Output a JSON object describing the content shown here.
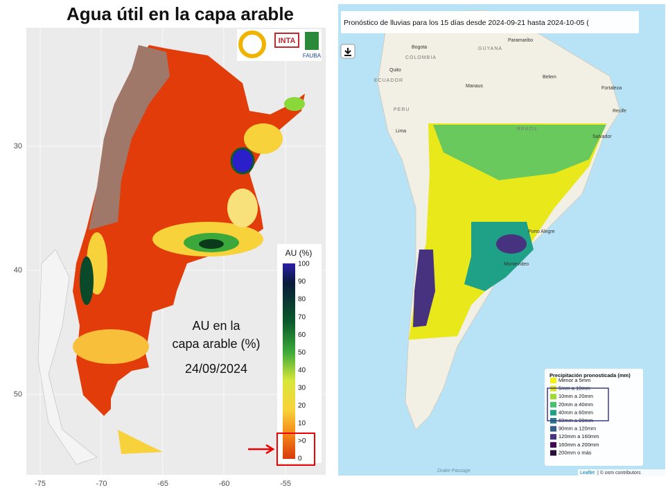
{
  "left_map": {
    "title": "Agua útil en la capa arable",
    "logos": [
      "INTA",
      "FAUBA"
    ],
    "x_ticks": [
      "-75",
      "-70",
      "-65",
      "-60",
      "-55"
    ],
    "y_ticks": [
      "30",
      "40",
      "50"
    ],
    "colorbar": {
      "title": "AU (%)",
      "labels": [
        "100",
        "90",
        "80",
        "70",
        "60",
        "50",
        "40",
        "30",
        "20",
        "10",
        ">0",
        "0"
      ]
    },
    "annotation": {
      "lines": [
        "AU en la",
        "capa arable (%)"
      ],
      "date": "24/09/2024"
    }
  },
  "right_map": {
    "title": "Pronóstico de lluvias para los 15 días desde 2024-09-21 hasta 2024-10-05 (",
    "places": [
      "Bogota",
      "Paramaribo",
      "GUYANA",
      "COLOMBIA",
      "Quito",
      "ECUADOR",
      "Manaus",
      "Belem",
      "Fortaleza",
      "PERU",
      "Recife",
      "Lima",
      "BRAZIL",
      "Salvador",
      "Porto Alegre",
      "Montevideo"
    ],
    "legend": {
      "title": "Precipitación pronosticada (mm)",
      "items": [
        {
          "label": "Menor a 5mm",
          "color": "#f6f30a"
        },
        {
          "label": "5mm a 10mm",
          "color": "#dde318"
        },
        {
          "label": "10mm a 20mm",
          "color": "#a0da39"
        },
        {
          "label": "20mm a 40mm",
          "color": "#4ac16d"
        },
        {
          "label": "40mm a 60mm",
          "color": "#1fa187"
        },
        {
          "label": "60mm a 90mm",
          "color": "#277f8e"
        },
        {
          "label": "90mm a 120mm",
          "color": "#365c8d"
        },
        {
          "label": "120mm a 160mm",
          "color": "#46327e"
        },
        {
          "label": "160mm a 200mm",
          "color": "#440154"
        },
        {
          "label": "200mm o más",
          "color": "#2a0a3a"
        }
      ]
    },
    "sea_label": "Drake Passage",
    "attribution_link": "Leaflet",
    "attribution": "| © osm contributors"
  }
}
